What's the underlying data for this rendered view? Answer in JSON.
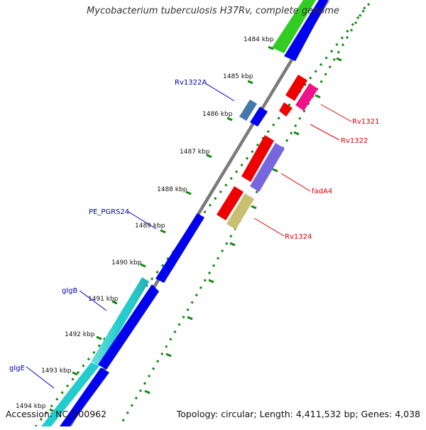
{
  "title": "Mycobacterium tuberculosis H37Rv, complete genome",
  "footer": {
    "accession": "Accession: NC_000962",
    "summary": "Topology: circular; Length: 4,411,532 bp; Genes: 4,038"
  },
  "ticks": [
    "1484 kbp",
    "1485 kbp",
    "1486 kbp",
    "1487 kbp",
    "1488 kbp",
    "1489 kbp",
    "1490 kbp",
    "1491 kbp",
    "1492 kbp",
    "1493 kbp",
    "1494 kbp"
  ],
  "labels": {
    "forward": [
      "Rv1321",
      "Rv1322",
      "fadA4",
      "Rv1324"
    ],
    "reverse": [
      "Rv1322A",
      "PE_PGRS24",
      "glgB",
      "glgE"
    ]
  },
  "colors": {
    "forward_label": "#dd0000",
    "reverse_label": "#0000aa",
    "backbone": "#777777",
    "tick_dots": "#118811",
    "gene_blue": "#0000ee",
    "gene_green": "#33cc22",
    "gene_red": "#ee0000",
    "gene_pink": "#ee1188",
    "gene_purple": "#7766dd",
    "gene_olive": "#c8c070",
    "gene_cyan": "#22cccc",
    "gene_steel": "#4477aa"
  }
}
